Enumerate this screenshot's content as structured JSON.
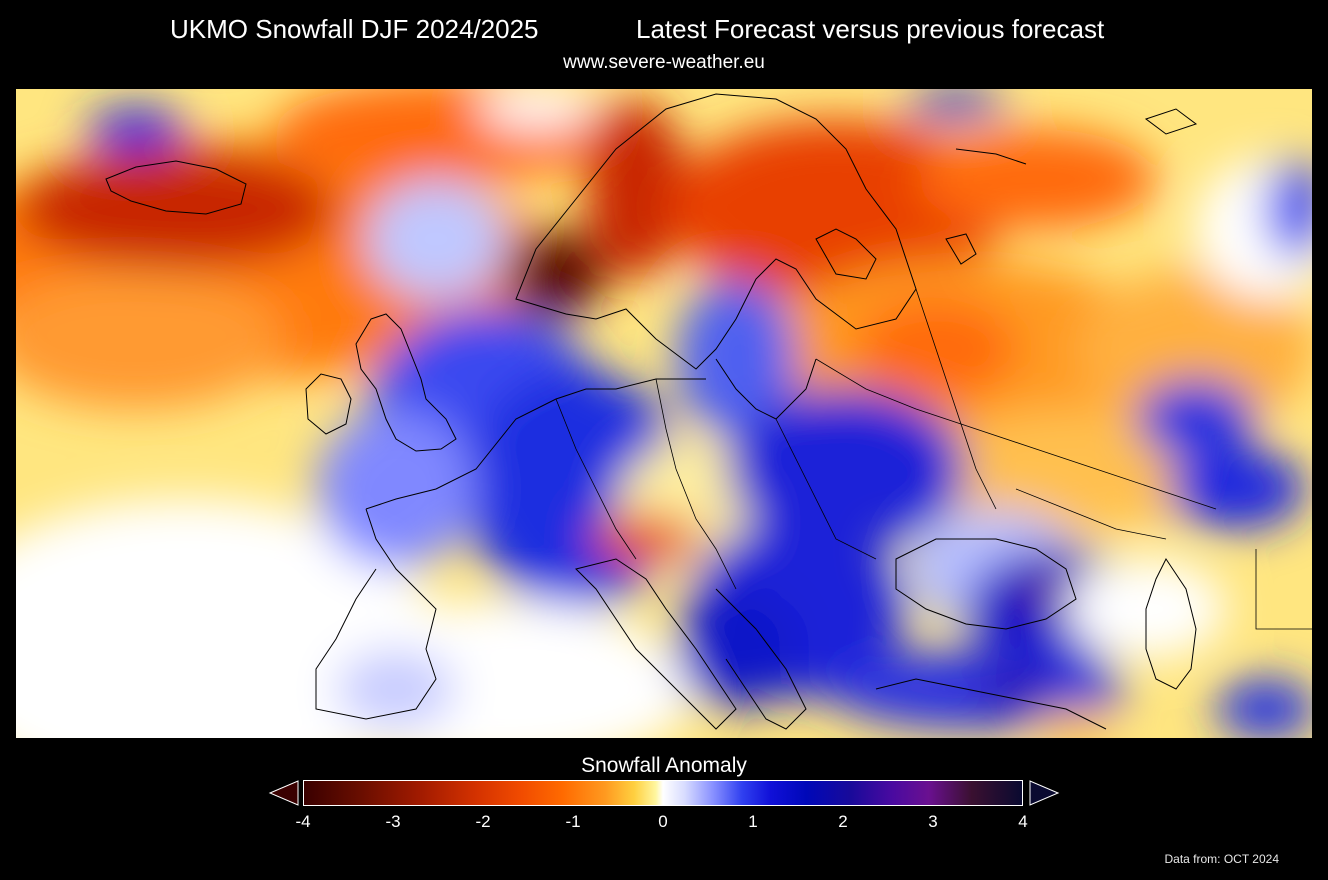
{
  "header": {
    "title_left": "UKMO Snowfall DJF 2024/2025",
    "title_right": "Latest Forecast versus previous forecast",
    "subtitle": "www.severe-weather.eu"
  },
  "map": {
    "region": "Europe",
    "variable": "Snowfall anomaly"
  },
  "legend": {
    "title": "Snowfall Anomaly",
    "ticks": [
      "-4",
      "-3",
      "-2",
      "-1",
      "0",
      "1",
      "2",
      "3",
      "4"
    ],
    "range": [
      -4,
      4
    ],
    "colors": {
      "min": "#3a0000",
      "neg_strong": "#a01a00",
      "neg_mid": "#f04a00",
      "neg_weak": "#ffd040",
      "zero": "#ffffff",
      "pos_weak": "#8890ff",
      "pos_mid": "#1010d8",
      "pos_strong": "#4a0aa0",
      "max": "#0a0a30"
    }
  },
  "footer": {
    "source": "Data from: OCT 2024"
  }
}
